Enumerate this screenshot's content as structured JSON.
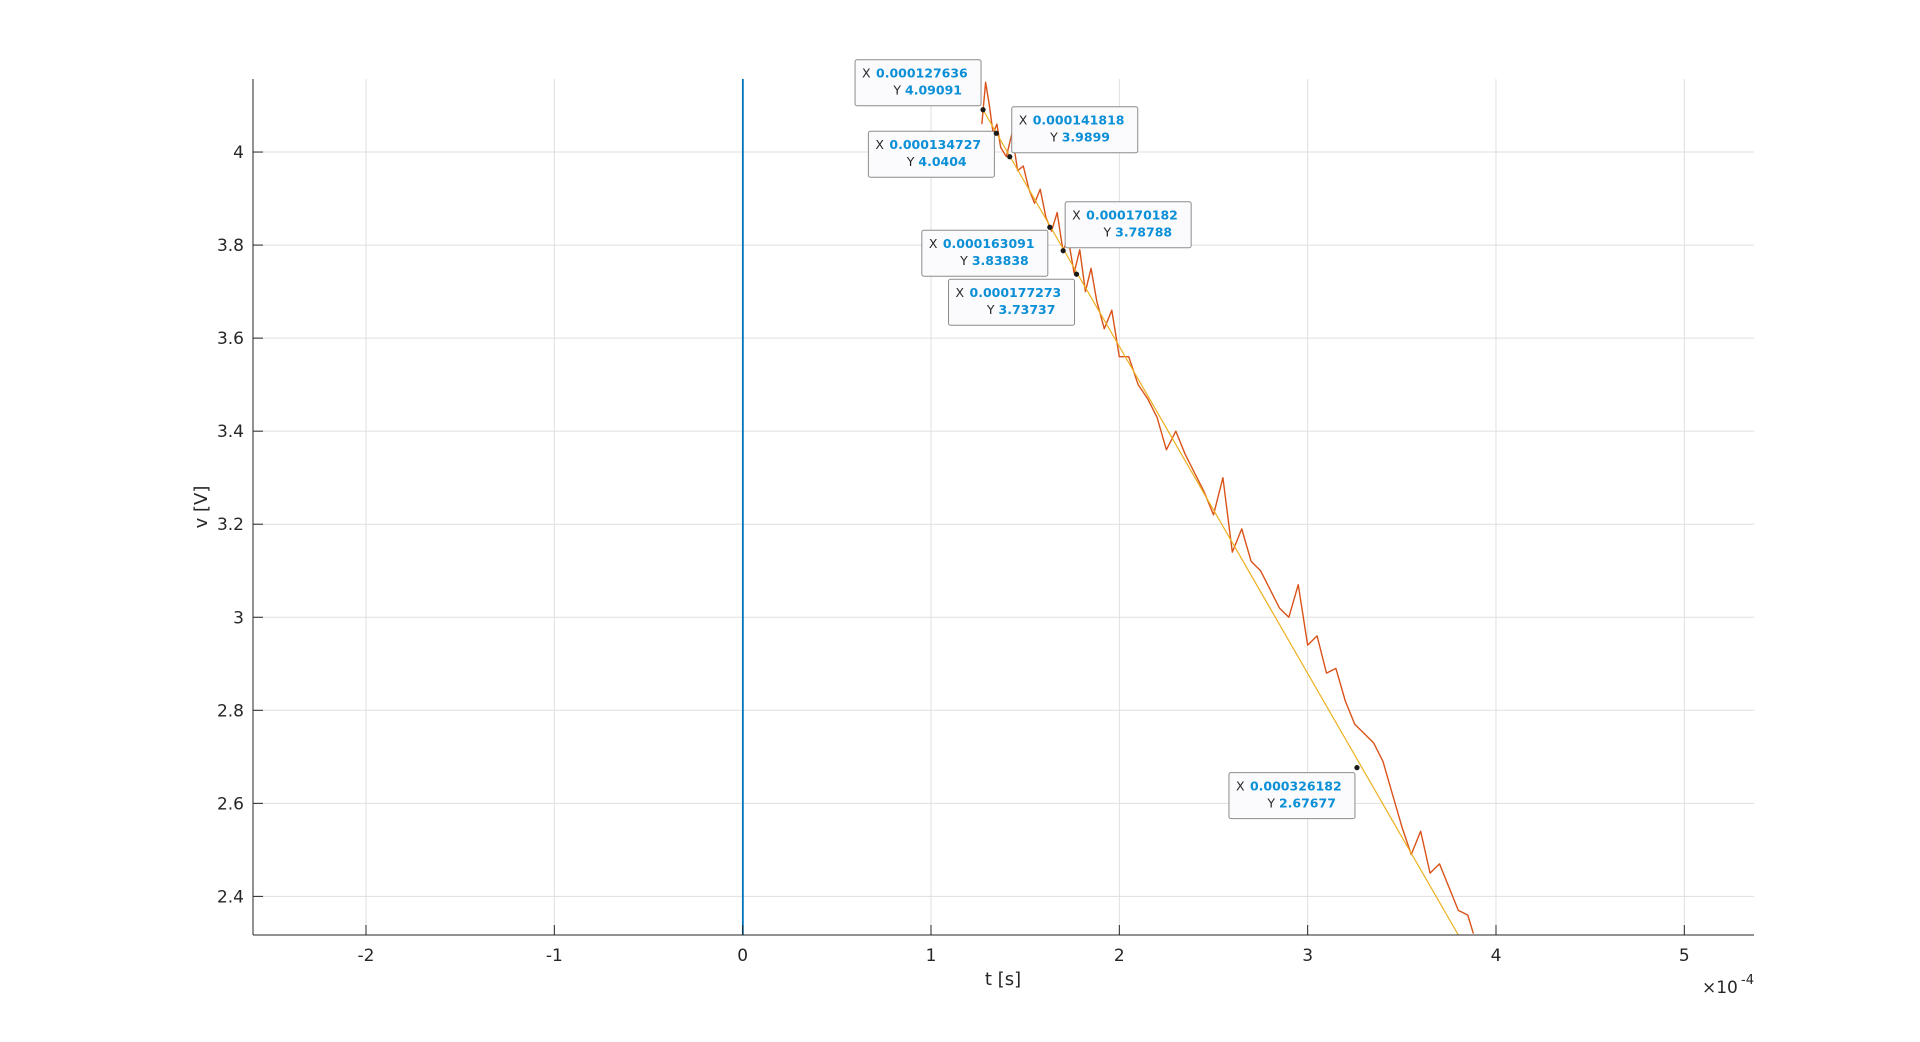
{
  "chart_data": {
    "type": "line",
    "title": "",
    "xlabel": "t [s]",
    "ylabel": "v [V]",
    "x_exponent_label": "×10",
    "x_exponent_power": "-4",
    "xlim": [
      -0.00026,
      0.000537
    ],
    "ylim": [
      2.317,
      4.157
    ],
    "x_scale_factor": 0.0001,
    "x_ticks": [
      -2,
      -1,
      0,
      1,
      2,
      3,
      4,
      5
    ],
    "x_tick_labels": [
      "-2",
      "-1",
      "0",
      "1",
      "2",
      "3",
      "4",
      "5"
    ],
    "y_ticks": [
      2.4,
      2.6,
      2.8,
      3.0,
      3.2,
      3.4,
      3.6,
      3.8,
      4.0
    ],
    "y_tick_labels": [
      "2.4",
      "2.6",
      "2.8",
      "3",
      "3.2",
      "3.4",
      "3.6",
      "3.8",
      "4"
    ],
    "grid": true,
    "colors": {
      "series_blue": "#0072bd",
      "series_orange": "#d95319",
      "series_yellow": "#edb120",
      "grid": "#dfdfdf",
      "axis": "#262626",
      "datatip_value": "#0b8fd6"
    },
    "series": [
      {
        "color": "#0072bd",
        "x": [
          0,
          0,
          2e-07,
          2e-07
        ],
        "y": [
          2.317,
          4.157,
          4.157,
          2.317
        ]
      },
      {
        "color": "#d95319",
        "x": [
          0.000127,
          0.000129,
          0.000131,
          0.000133,
          0.000135,
          0.000137,
          0.00014,
          0.000143,
          0.000146,
          0.000149,
          0.000152,
          0.000155,
          0.000158,
          0.000161,
          0.000164,
          0.000167,
          0.00017,
          0.000173,
          0.000176,
          0.000179,
          0.000182,
          0.000185,
          0.000188,
          0.000192,
          0.000196,
          0.0002,
          0.000205,
          0.00021,
          0.000215,
          0.00022,
          0.000225,
          0.00023,
          0.000235,
          0.00024,
          0.000245,
          0.00025,
          0.000255,
          0.00026,
          0.000265,
          0.00027,
          0.000275,
          0.00028,
          0.000285,
          0.00029,
          0.000295,
          0.0003,
          0.000305,
          0.00031,
          0.000315,
          0.00032,
          0.000325,
          0.00033,
          0.000335,
          0.00034,
          0.000345,
          0.00035,
          0.000355,
          0.00036,
          0.000365,
          0.00037,
          0.000375,
          0.00038,
          0.000385,
          0.000388
        ],
        "y": [
          4.06,
          4.15,
          4.1,
          4.04,
          4.06,
          4.01,
          3.99,
          4.04,
          3.96,
          3.97,
          3.92,
          3.89,
          3.92,
          3.86,
          3.83,
          3.87,
          3.79,
          3.81,
          3.74,
          3.79,
          3.7,
          3.75,
          3.68,
          3.62,
          3.66,
          3.56,
          3.56,
          3.5,
          3.47,
          3.43,
          3.36,
          3.4,
          3.35,
          3.31,
          3.27,
          3.22,
          3.3,
          3.14,
          3.19,
          3.12,
          3.1,
          3.06,
          3.02,
          3.0,
          3.07,
          2.94,
          2.96,
          2.88,
          2.89,
          2.82,
          2.77,
          2.75,
          2.73,
          2.69,
          2.62,
          2.55,
          2.49,
          2.54,
          2.45,
          2.47,
          2.42,
          2.37,
          2.36,
          2.32
        ]
      },
      {
        "color": "#edb120",
        "x": [
          0.000127636,
          0.00038
        ],
        "y": [
          4.09091,
          2.317
        ]
      }
    ],
    "datatips": [
      {
        "x": "0.000127636",
        "y": "4.09091",
        "px": 0.000127636,
        "py": 4.09091
      },
      {
        "x": "0.000134727",
        "y": "4.0404",
        "px": 0.000134727,
        "py": 4.0404
      },
      {
        "x": "0.000141818",
        "y": "3.9899",
        "px": 0.000141818,
        "py": 3.9899
      },
      {
        "x": "0.000163091",
        "y": "3.83838",
        "px": 0.000163091,
        "py": 3.83838
      },
      {
        "x": "0.000170182",
        "y": "3.78788",
        "px": 0.000170182,
        "py": 3.78788
      },
      {
        "x": "0.000177273",
        "y": "3.73737",
        "px": 0.000177273,
        "py": 3.73737
      },
      {
        "x": "0.000326182",
        "y": "2.67677",
        "px": 0.000326182,
        "py": 2.67677
      }
    ],
    "datatip_key_x": "X",
    "datatip_key_y": "Y"
  }
}
